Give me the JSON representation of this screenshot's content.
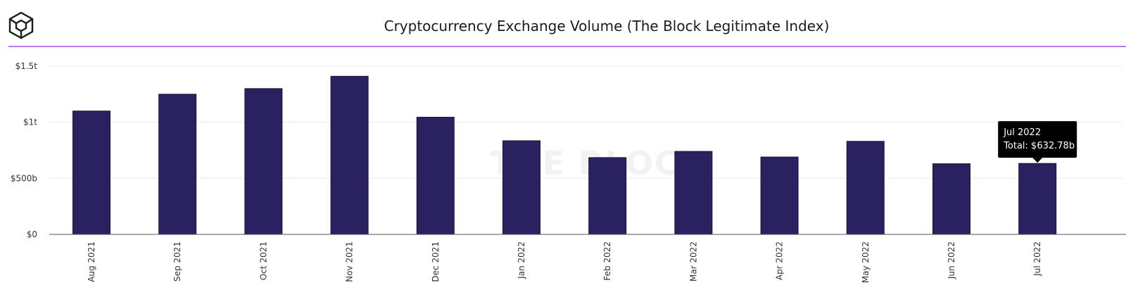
{
  "header": {
    "logo": "cube-logo"
  },
  "watermark": "THE BLOCK",
  "chart_data": {
    "type": "bar",
    "title": "Cryptocurrency Exchange Volume (The Block Legitimate Index)",
    "categories": [
      "Aug 2021",
      "Sep 2021",
      "Oct 2021",
      "Nov 2021",
      "Dec 2021",
      "Jan 2022",
      "Feb 2022",
      "Mar 2022",
      "Apr 2022",
      "May 2022",
      "Jun 2022",
      "Jul 2022"
    ],
    "values": [
      1100,
      1250,
      1300,
      1410,
      1045,
      835,
      685,
      740,
      690,
      830,
      630,
      632.78
    ],
    "unit": "billion USD",
    "ylim": [
      0,
      1500
    ],
    "yticks": [
      0,
      500,
      1000,
      1500
    ],
    "ytick_labels": [
      "$0",
      "$500b",
      "$1t",
      "$1.5t"
    ],
    "grid": true,
    "colors": {
      "bar": "#2a2160",
      "accent_line": "#b57cf0",
      "tooltip_bg": "#000000"
    },
    "tooltip": {
      "category": "Jul 2022",
      "title": "Jul 2022",
      "text": "Total: $632.78b"
    }
  }
}
